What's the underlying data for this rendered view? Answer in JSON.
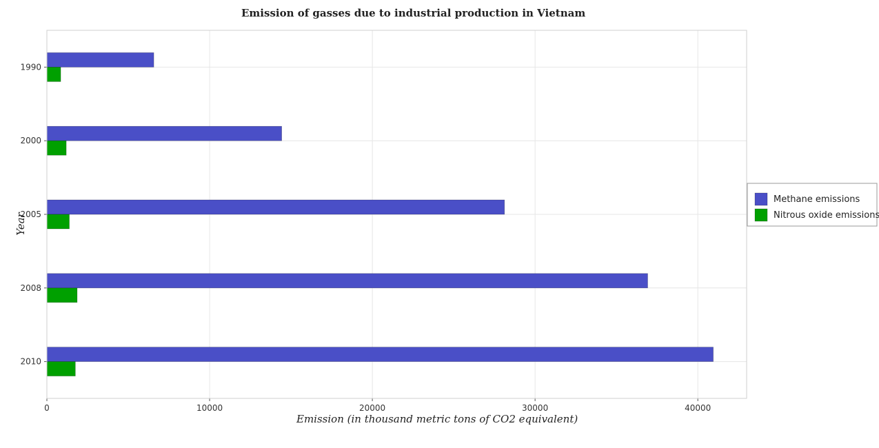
{
  "chart_data": {
    "type": "bar",
    "orientation": "horizontal",
    "title": "Emission of gasses due to industrial production in Vietnam",
    "xlabel": "Emission (in thousand metric tons of CO2 equivalent)",
    "ylabel": "Year",
    "categories": [
      "1990",
      "2000",
      "2005",
      "2008",
      "2010"
    ],
    "xlim": [
      0,
      43000
    ],
    "xticks": [
      0,
      10000,
      20000,
      30000,
      40000
    ],
    "xtick_labels": [
      "0",
      "10000",
      "20000",
      "30000",
      "40000"
    ],
    "grid": true,
    "legend_position": "right",
    "series": [
      {
        "name": "Methane emissions",
        "color": "#4a4fc7",
        "values": [
          6570,
          14430,
          28120,
          36920,
          40950
        ]
      },
      {
        "name": "Nitrous oxide emissions",
        "color": "#00a000",
        "values": [
          850,
          1190,
          1380,
          1860,
          1750
        ]
      }
    ]
  }
}
